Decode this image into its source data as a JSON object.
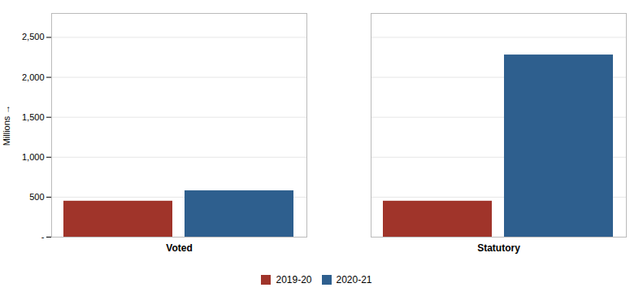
{
  "chart_data": {
    "type": "bar",
    "categories": [
      "Voted",
      "Statutory"
    ],
    "series": [
      {
        "name": "2019-20",
        "color": "#A0342A",
        "values": [
          450,
          450
        ]
      },
      {
        "name": "2020-21",
        "color": "#2E5F8E",
        "values": [
          580,
          2280
        ]
      }
    ],
    "ylabel": "Millions",
    "ylim": [
      0,
      2800
    ],
    "yticks": [
      {
        "value": 0,
        "label": "-"
      },
      500,
      {
        "value": 1000,
        "label": "1,000"
      },
      {
        "value": 1500,
        "label": "1,500"
      },
      {
        "value": 2000,
        "label": "2,000"
      },
      {
        "value": 2500,
        "label": "2,500"
      }
    ],
    "grid": true,
    "legend": "bottom"
  }
}
